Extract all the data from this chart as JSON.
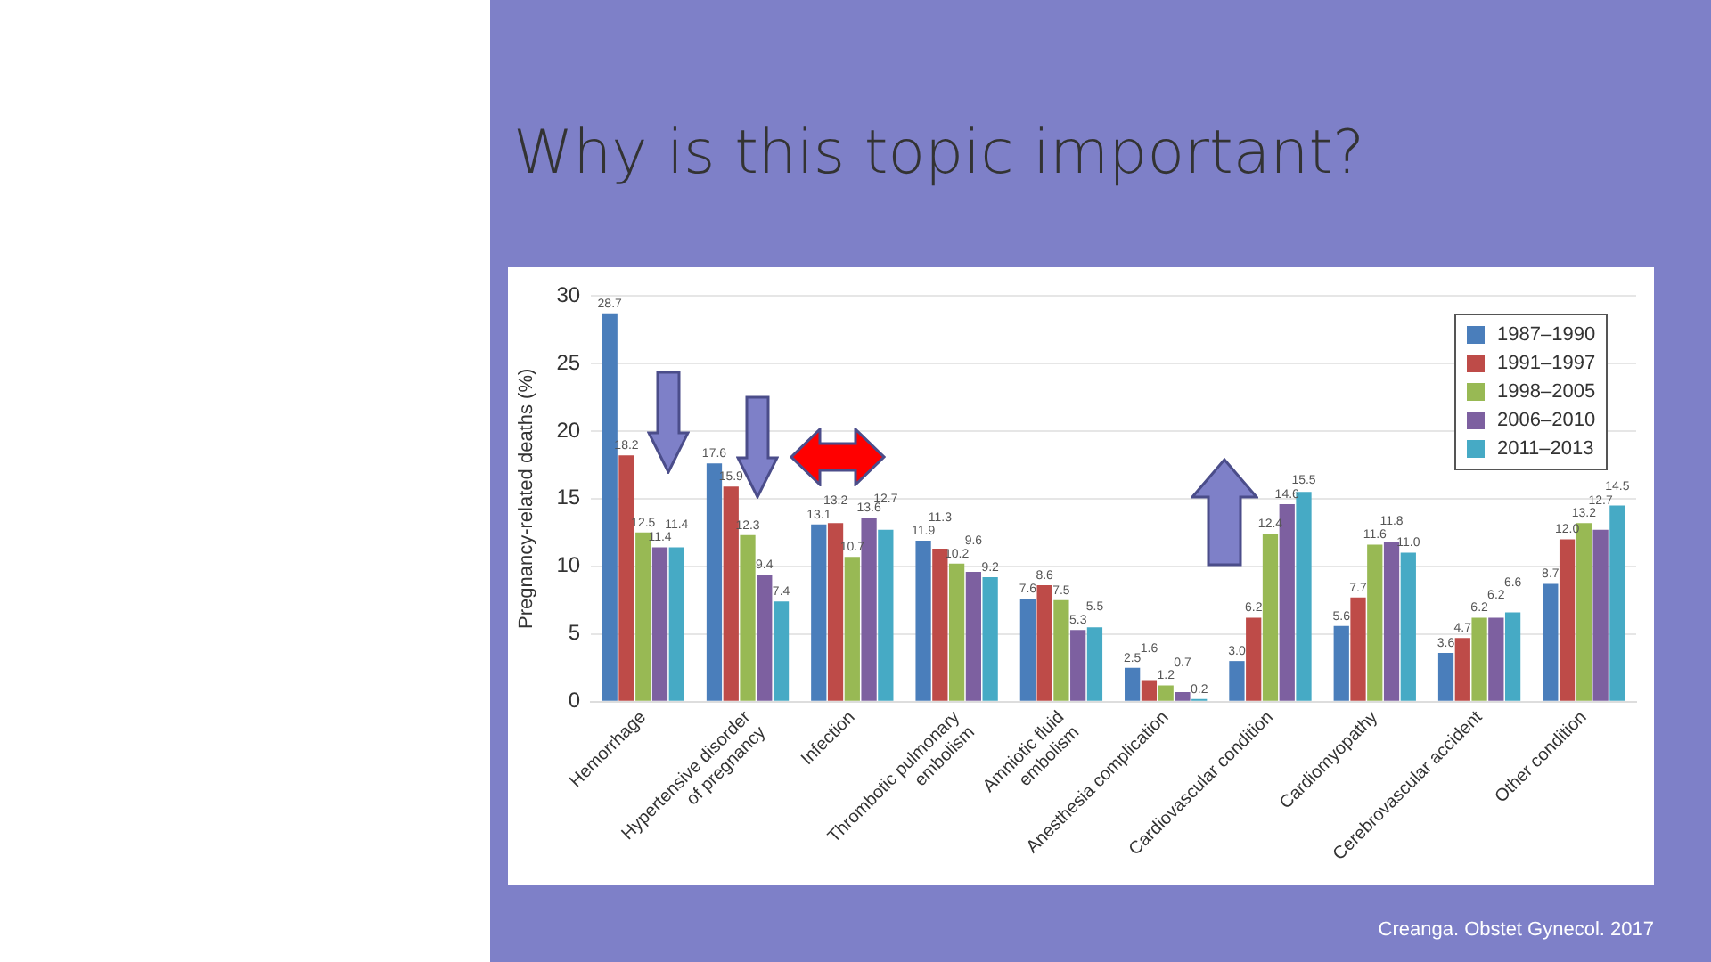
{
  "chart_data": {
    "type": "bar",
    "title": "Why is this topic important?",
    "ylabel": "Pregnancy-related deaths (%)",
    "categories": [
      "Hemorrhage",
      "Hypertensive disorder\nof pregnancy",
      "Infection",
      "Thrombotic pulmonary\nembolism",
      "Amniotic fluid\nembolism",
      "Anesthesia complication",
      "Cardiovascular condition",
      "Cardiomyopathy",
      "Cerebrovascular accident",
      "Other condition"
    ],
    "series": [
      {
        "name": "1987–1990",
        "color": "#4a7ebb",
        "values": [
          28.7,
          17.6,
          13.1,
          11.9,
          7.6,
          2.5,
          3.0,
          5.6,
          3.6,
          8.7
        ],
        "value_labels": [
          "28.7",
          "17.6",
          "13.1",
          "11.9",
          "7.6",
          "2.5",
          "3.0",
          "5.6",
          "3.6",
          "8.7"
        ]
      },
      {
        "name": "1991–1997",
        "color": "#be4b48",
        "values": [
          18.2,
          15.9,
          13.2,
          11.3,
          8.6,
          1.6,
          6.2,
          7.7,
          4.7,
          12.0
        ],
        "value_labels": [
          "18.2",
          "15.9",
          "13.2",
          "11.3",
          "8.6",
          "1.6",
          "6.2",
          "7.7",
          "4.7",
          "12.0"
        ]
      },
      {
        "name": "1998–2005",
        "color": "#98b954",
        "values": [
          12.5,
          12.3,
          10.7,
          10.2,
          7.5,
          1.2,
          12.4,
          11.6,
          6.2,
          13.2
        ],
        "value_labels": [
          "12.5",
          "12.3",
          "10.7",
          "10.2",
          "7.5",
          "1.2",
          "12.4",
          "11.6",
          "6.2",
          "13.2"
        ]
      },
      {
        "name": "2006–2010",
        "color": "#7d60a0",
        "values": [
          11.4,
          9.4,
          13.6,
          9.6,
          5.3,
          0.7,
          14.6,
          11.8,
          6.2,
          12.7
        ],
        "value_labels": [
          "11.4",
          "9.4",
          "13.6",
          "9.6",
          "5.3",
          "0.7",
          "14.6",
          "11.8",
          "6.2",
          "12.7"
        ]
      },
      {
        "name": "2011–2013",
        "color": "#46aac5",
        "values": [
          11.4,
          7.4,
          12.7,
          9.2,
          5.5,
          0.2,
          15.5,
          11.0,
          6.6,
          14.5
        ],
        "value_labels": [
          "11.4",
          "7.4",
          "12.7",
          "9.2",
          "5.5",
          "0.2",
          "15.5",
          "11.0",
          "6.6",
          "14.5"
        ]
      }
    ],
    "ylim": [
      0,
      30
    ],
    "yticks": [
      0,
      5,
      10,
      15,
      20,
      25,
      30
    ],
    "grid": "y",
    "legend": "top right",
    "annotations": [
      "Creanga. Obstet Gynecol. 2017"
    ]
  }
}
